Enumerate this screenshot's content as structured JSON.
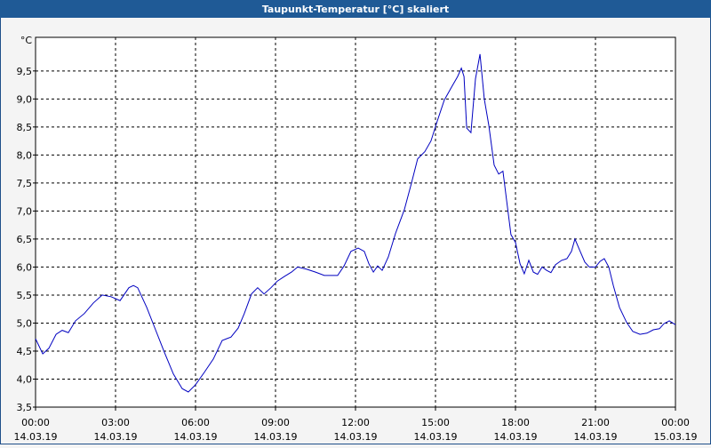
{
  "chart_data": {
    "type": "line",
    "title": "Taupunkt-Temperatur [°C] skaliert",
    "y_unit": "°C",
    "x": [
      0,
      0.27,
      0.5,
      0.77,
      1,
      1.23,
      1.5,
      1.83,
      2.17,
      2.5,
      2.83,
      3.17,
      3.5,
      3.67,
      3.83,
      4.17,
      4.5,
      4.83,
      5.17,
      5.5,
      5.73,
      6,
      6.33,
      6.67,
      7,
      7.33,
      7.6,
      7.83,
      8.1,
      8.33,
      8.57,
      8.83,
      9.07,
      9.33,
      9.6,
      9.83,
      10.17,
      10.5,
      10.83,
      11.33,
      11.57,
      11.83,
      12.1,
      12.33,
      12.5,
      12.67,
      12.83,
      13,
      13.23,
      13.5,
      13.83,
      14.1,
      14.33,
      14.6,
      14.83,
      15.07,
      15.33,
      15.6,
      15.83,
      15.97,
      16.07,
      16.17,
      16.33,
      16.5,
      16.67,
      16.83,
      17,
      17.2,
      17.37,
      17.53,
      17.67,
      17.83,
      18,
      18.17,
      18.33,
      18.5,
      18.67,
      18.83,
      19,
      19.17,
      19.33,
      19.5,
      19.73,
      19.93,
      20.1,
      20.23,
      20.4,
      20.6,
      20.77,
      21,
      21.17,
      21.33,
      21.5,
      21.67,
      21.9,
      22.17,
      22.4,
      22.67,
      22.93,
      23.17,
      23.4,
      23.57,
      23.77,
      24
    ],
    "series": [
      {
        "name": "Taupunkt",
        "color": "#0000c0",
        "values": [
          4.72,
          4.45,
          4.55,
          4.8,
          4.87,
          4.83,
          5.04,
          5.17,
          5.36,
          5.5,
          5.47,
          5.4,
          5.63,
          5.67,
          5.63,
          5.28,
          4.88,
          4.48,
          4.09,
          3.83,
          3.77,
          3.9,
          4.12,
          4.36,
          4.69,
          4.75,
          4.91,
          5.17,
          5.52,
          5.63,
          5.52,
          5.63,
          5.75,
          5.83,
          5.91,
          6.0,
          5.96,
          5.91,
          5.85,
          5.85,
          6.02,
          6.28,
          6.34,
          6.28,
          6.06,
          5.91,
          6.02,
          5.94,
          6.18,
          6.6,
          7.02,
          7.5,
          7.93,
          8.06,
          8.25,
          8.61,
          8.98,
          9.21,
          9.4,
          9.55,
          9.4,
          8.48,
          8.4,
          9.36,
          9.8,
          9.0,
          8.53,
          7.82,
          7.66,
          7.71,
          7.18,
          6.58,
          6.44,
          6.06,
          5.88,
          6.12,
          5.91,
          5.87,
          6.0,
          5.94,
          5.9,
          6.04,
          6.12,
          6.15,
          6.28,
          6.5,
          6.31,
          6.09,
          6.0,
          6.0,
          6.1,
          6.15,
          6.0,
          5.67,
          5.28,
          5.01,
          4.85,
          4.8,
          4.82,
          4.88,
          4.9,
          4.99,
          5.04,
          4.97
        ]
      }
    ],
    "xlim": [
      0,
      24
    ],
    "xticks": [
      {
        "value": 0,
        "label": "00:00",
        "date": "14.03.19"
      },
      {
        "value": 3,
        "label": "03:00",
        "date": "14.03.19"
      },
      {
        "value": 6,
        "label": "06:00",
        "date": "14.03.19"
      },
      {
        "value": 9,
        "label": "09:00",
        "date": "14.03.19"
      },
      {
        "value": 12,
        "label": "12:00",
        "date": "14.03.19"
      },
      {
        "value": 15,
        "label": "15:00",
        "date": "14.03.19"
      },
      {
        "value": 18,
        "label": "18:00",
        "date": "14.03.19"
      },
      {
        "value": 21,
        "label": "21:00",
        "date": "14.03.19"
      },
      {
        "value": 24,
        "label": "00:00",
        "date": "15.03.19"
      }
    ],
    "ylim": [
      3.5,
      10.1
    ],
    "yticks": [
      {
        "value": 3.5,
        "label": "3,5"
      },
      {
        "value": 4,
        "label": "4,0"
      },
      {
        "value": 4.5,
        "label": "4,5"
      },
      {
        "value": 5,
        "label": "5,0"
      },
      {
        "value": 5.5,
        "label": "5,5"
      },
      {
        "value": 6,
        "label": "6,0"
      },
      {
        "value": 6.5,
        "label": "6,5"
      },
      {
        "value": 7,
        "label": "7,0"
      },
      {
        "value": 7.5,
        "label": "7,5"
      },
      {
        "value": 8,
        "label": "8,0"
      },
      {
        "value": 8.5,
        "label": "8,5"
      },
      {
        "value": 9,
        "label": "9,0"
      },
      {
        "value": 9.5,
        "label": "9,5"
      }
    ],
    "grid": true
  }
}
